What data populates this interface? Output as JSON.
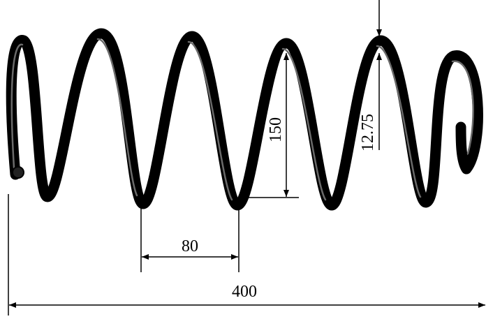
{
  "dimensions": {
    "height": "150",
    "wire_diameter": "12.75",
    "pitch": "80",
    "length": "400"
  }
}
